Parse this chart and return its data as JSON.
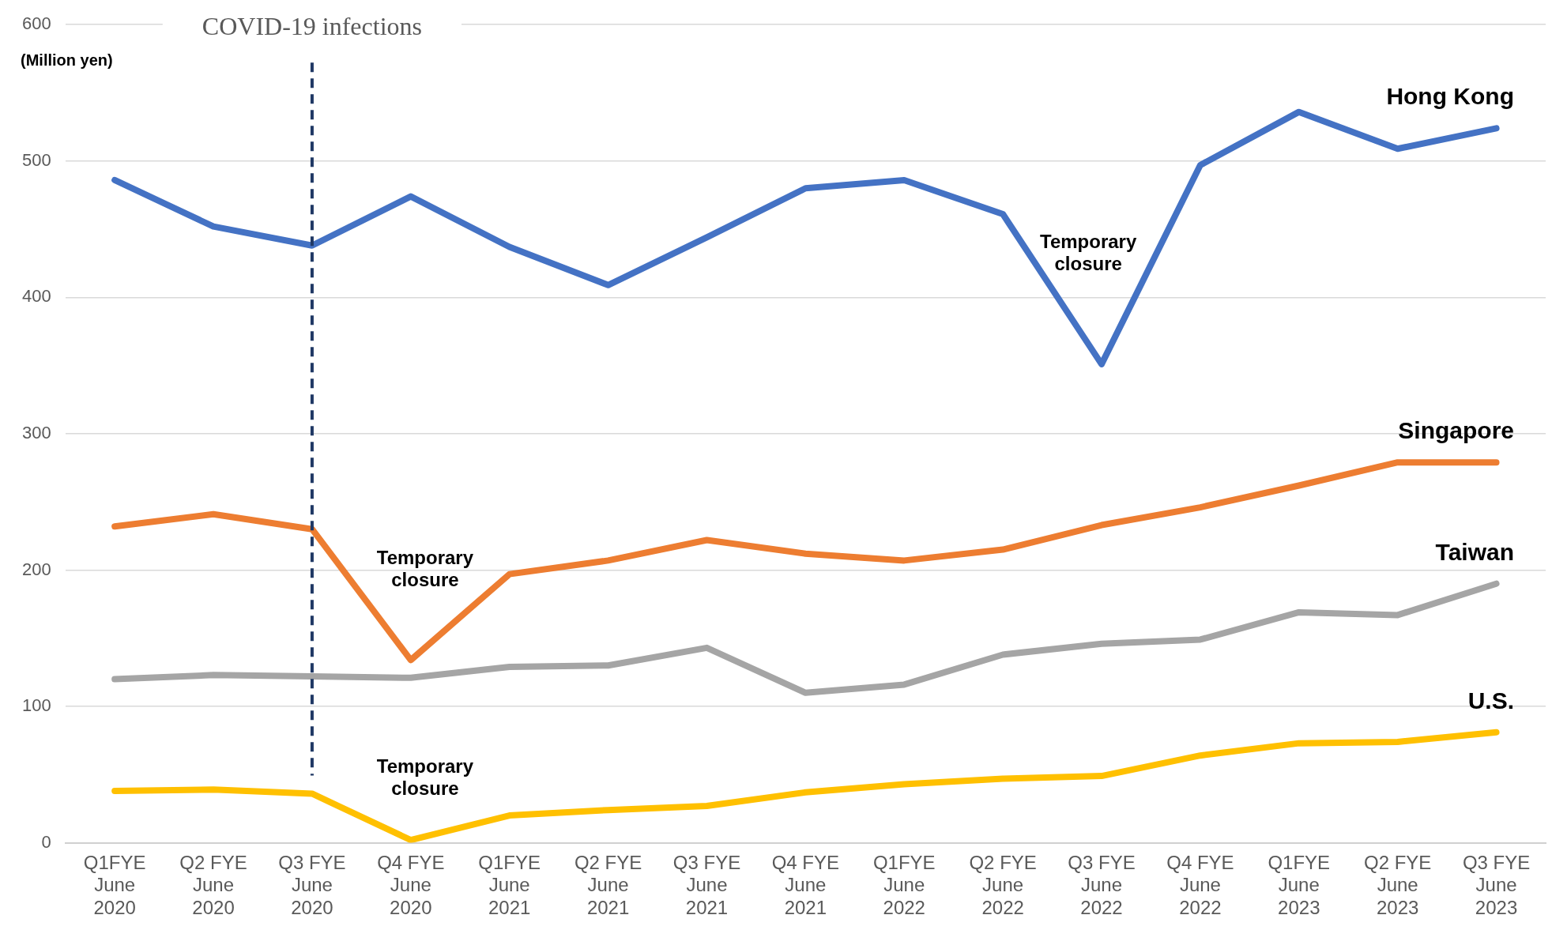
{
  "chart_data": {
    "type": "line",
    "ylabel": "(Million yen)",
    "categories": [
      "Q1FYE\nJune\n2020",
      "Q2 FYE\nJune\n2020",
      "Q3 FYE\nJune\n2020",
      "Q4 FYE\nJune\n2020",
      "Q1FYE\nJune\n2021",
      "Q2 FYE\nJune\n2021",
      "Q3 FYE\nJune\n2021",
      "Q4 FYE\nJune\n2021",
      "Q1FYE\nJune\n2022",
      "Q2 FYE\nJune\n2022",
      "Q3 FYE\nJune\n2022",
      "Q4 FYE\nJune\n2022",
      "Q1FYE\nJune\n2023",
      "Q2 FYE\nJune\n2023",
      "Q3 FYE\nJune\n2023"
    ],
    "series": [
      {
        "name": "Hong Kong",
        "color": "#4472c4",
        "values": [
          486,
          452,
          438,
          474,
          437,
          409,
          444,
          480,
          486,
          461,
          351,
          497,
          536,
          509,
          524
        ]
      },
      {
        "name": "Singapore",
        "color": "#ed7d31",
        "values": [
          232,
          241,
          230,
          134,
          197,
          207,
          222,
          212,
          207,
          215,
          233,
          246,
          262,
          279,
          279
        ]
      },
      {
        "name": "Taiwan",
        "color": "#a5a5a5",
        "values": [
          120,
          123,
          122,
          121,
          129,
          130,
          143,
          110,
          116,
          138,
          146,
          149,
          169,
          167,
          190
        ]
      },
      {
        "name": "U.S.",
        "color": "#ffc000",
        "values": [
          38,
          39,
          36,
          2,
          20,
          24,
          27,
          37,
          43,
          47,
          49,
          64,
          73,
          74,
          81
        ]
      }
    ],
    "ylim": [
      0,
      600
    ],
    "yticks": [
      0,
      100,
      200,
      300,
      400,
      500,
      600
    ],
    "grid": "y",
    "legend": false,
    "marker": "none",
    "line_style": "solid",
    "ref_lines": [
      {
        "axis": "x",
        "value": "Q3 FYE\nJune\n2020",
        "label": "COVID-19 infections",
        "color": "#1f3864",
        "line_style": "dashed"
      }
    ],
    "annotations": [
      "Temporary\nclosure",
      "Temporary\nclosure",
      "Temporary\nclosure"
    ]
  }
}
